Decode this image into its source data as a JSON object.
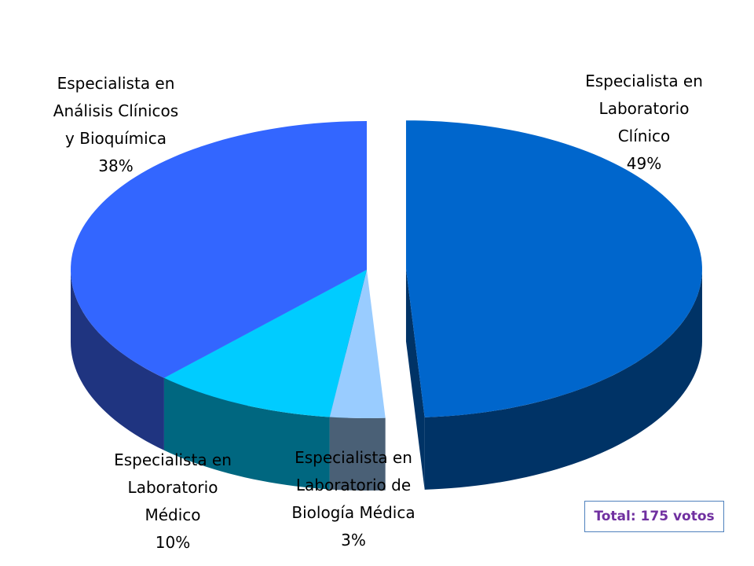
{
  "chart_data": {
    "type": "pie",
    "three_d": true,
    "exploded_slice": 0,
    "slices": [
      {
        "label_lines": [
          "Especialista en",
          "Laboratorio",
          "Clínico"
        ],
        "percent_label": "49%",
        "value": 49,
        "top_color": "#0066cc",
        "side_color": "#003366"
      },
      {
        "label_lines": [
          "Especialista en",
          "Laboratorio de",
          "Biología Médica"
        ],
        "percent_label": "3%",
        "value": 3,
        "top_color": "#99ccff",
        "side_color": "#4a6076"
      },
      {
        "label_lines": [
          "Especialista en",
          "Laboratorio",
          "Médico"
        ],
        "percent_label": "10%",
        "value": 10,
        "top_color": "#00ccff",
        "side_color": "#006780"
      },
      {
        "label_lines": [
          "Especialista en",
          "Análisis Clínicos",
          "y Bioquímica"
        ],
        "percent_label": "38%",
        "value": 38,
        "top_color": "#3366ff",
        "side_color": "#1f3480"
      }
    ]
  },
  "total_label": "Total: 175 votos"
}
